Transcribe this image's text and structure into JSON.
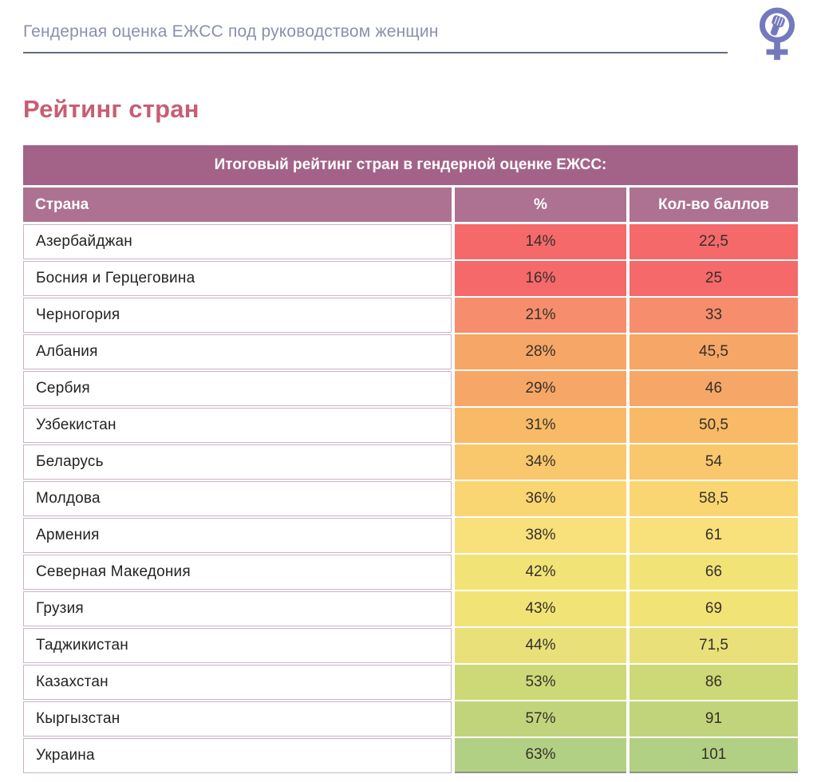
{
  "header": {
    "title": "Гендерная оценка ЕЖСС под руководством женщин",
    "title_color": "#8a91a9",
    "underline_color": "#606b85",
    "logo_icon": "women-power-fist-icon",
    "logo_color": "#7479bd"
  },
  "section_title": "Рейтинг стран",
  "section_title_color": "#c75e74",
  "table": {
    "caption": "Итоговый рейтинг стран в гендерной оценке ЕЖСС:",
    "caption_bg": "#a36389",
    "header_bg": "#ad7191",
    "columns": [
      "Страна",
      "%",
      "Кол-во баллов"
    ],
    "rows": [
      {
        "country": "Азербайджан",
        "percent": "14%",
        "score": "22,5",
        "color": "#f5696b"
      },
      {
        "country": "Босния и Герцеговина",
        "percent": "16%",
        "score": "25",
        "color": "#f5696b"
      },
      {
        "country": "Черногория",
        "percent": "21%",
        "score": "33",
        "color": "#f68e6d"
      },
      {
        "country": "Албания",
        "percent": "28%",
        "score": "45,5",
        "color": "#f6a666"
      },
      {
        "country": "Сербия",
        "percent": "29%",
        "score": "46",
        "color": "#f6a666"
      },
      {
        "country": "Узбекистан",
        "percent": "31%",
        "score": "50,5",
        "color": "#f8ba67"
      },
      {
        "country": "Беларусь",
        "percent": "34%",
        "score": "54",
        "color": "#f9c76c"
      },
      {
        "country": "Молдова",
        "percent": "36%",
        "score": "58,5",
        "color": "#fad672"
      },
      {
        "country": "Армения",
        "percent": "38%",
        "score": "61",
        "color": "#f8e07b"
      },
      {
        "country": "Северная Македония",
        "percent": "42%",
        "score": "66",
        "color": "#f2e376"
      },
      {
        "country": "Грузия",
        "percent": "43%",
        "score": "69",
        "color": "#f2e376"
      },
      {
        "country": "Таджикистан",
        "percent": "44%",
        "score": "71,5",
        "color": "#e9e07a"
      },
      {
        "country": "Казахстан",
        "percent": "53%",
        "score": "86",
        "color": "#cdd977"
      },
      {
        "country": "Кыргызстан",
        "percent": "57%",
        "score": "91",
        "color": "#c2d47b"
      },
      {
        "country": "Украина",
        "percent": "63%",
        "score": "101",
        "color": "#b2d083"
      }
    ]
  },
  "chart_data": {
    "type": "table",
    "title": "Итоговый рейтинг стран в гендерной оценке ЕЖСС:",
    "columns": [
      "Страна",
      "%",
      "Кол-во баллов"
    ],
    "categories": [
      "Азербайджан",
      "Босния и Герцеговина",
      "Черногория",
      "Албания",
      "Сербия",
      "Узбекистан",
      "Беларусь",
      "Молдова",
      "Армения",
      "Северная Македония",
      "Грузия",
      "Таджикистан",
      "Казахстан",
      "Кыргызстан",
      "Украина"
    ],
    "series": [
      {
        "name": "%",
        "values": [
          14,
          16,
          21,
          28,
          29,
          31,
          34,
          36,
          38,
          42,
          43,
          44,
          53,
          57,
          63
        ]
      },
      {
        "name": "Кол-во баллов",
        "values": [
          22.5,
          25,
          33,
          45.5,
          46,
          50.5,
          54,
          58.5,
          61,
          66,
          69,
          71.5,
          86,
          91,
          101
        ]
      }
    ],
    "layout_hints": "rows shaded on red-to-green gradient by value"
  }
}
